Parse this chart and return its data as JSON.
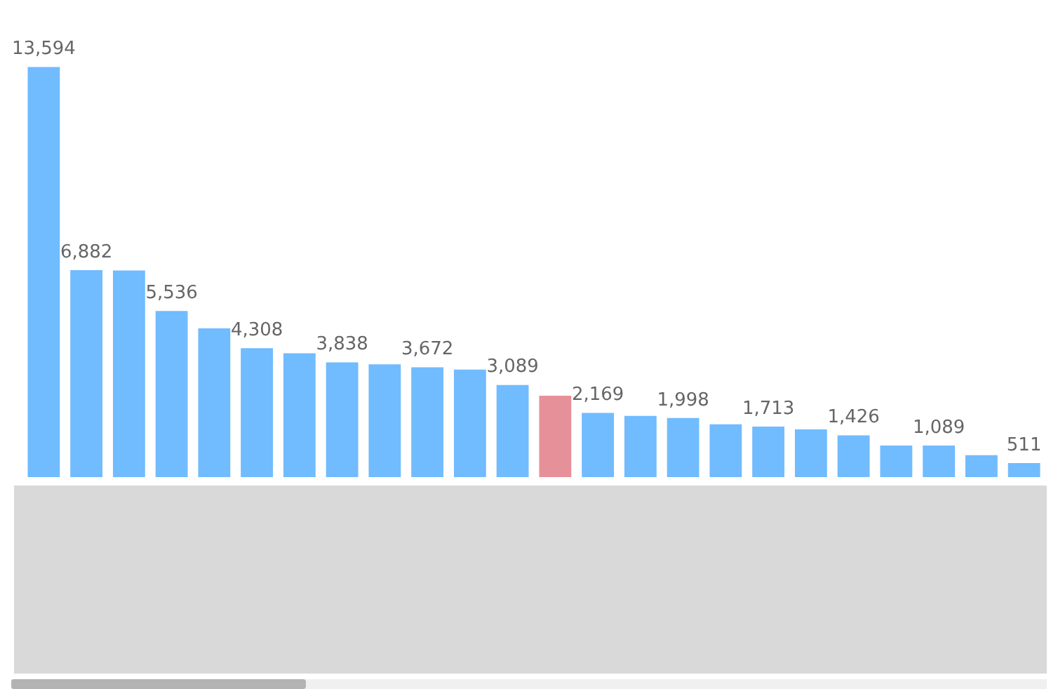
{
  "chart_data": {
    "type": "bar",
    "categories": [
      null,
      null,
      null,
      null,
      null,
      null,
      null,
      null,
      null,
      null,
      null,
      null,
      null,
      null,
      null,
      null,
      null,
      null,
      null,
      null,
      null,
      null,
      null,
      null
    ],
    "values": [
      13594,
      6882,
      6870,
      5536,
      4960,
      4308,
      4140,
      3838,
      3770,
      3672,
      3600,
      3089,
      2735,
      2169,
      2070,
      1998,
      1790,
      1713,
      1620,
      1426,
      1090,
      1089,
      770,
      511
    ],
    "value_labels": [
      "13,594",
      "6,882",
      null,
      "5,536",
      null,
      "4,308",
      null,
      "3,838",
      null,
      "3,672",
      null,
      "3,089",
      null,
      "2,169",
      null,
      "1,998",
      null,
      "1,713",
      null,
      "1,426",
      null,
      "1,089",
      null,
      "511"
    ],
    "colors": [
      "#71bbff",
      "#71bbff",
      "#71bbff",
      "#71bbff",
      "#71bbff",
      "#71bbff",
      "#71bbff",
      "#71bbff",
      "#71bbff",
      "#71bbff",
      "#71bbff",
      "#71bbff",
      "#e6919a",
      "#71bbff",
      "#71bbff",
      "#71bbff",
      "#71bbff",
      "#71bbff",
      "#71bbff",
      "#71bbff",
      "#71bbff",
      "#71bbff",
      "#71bbff",
      "#71bbff"
    ],
    "legend": false
  }
}
